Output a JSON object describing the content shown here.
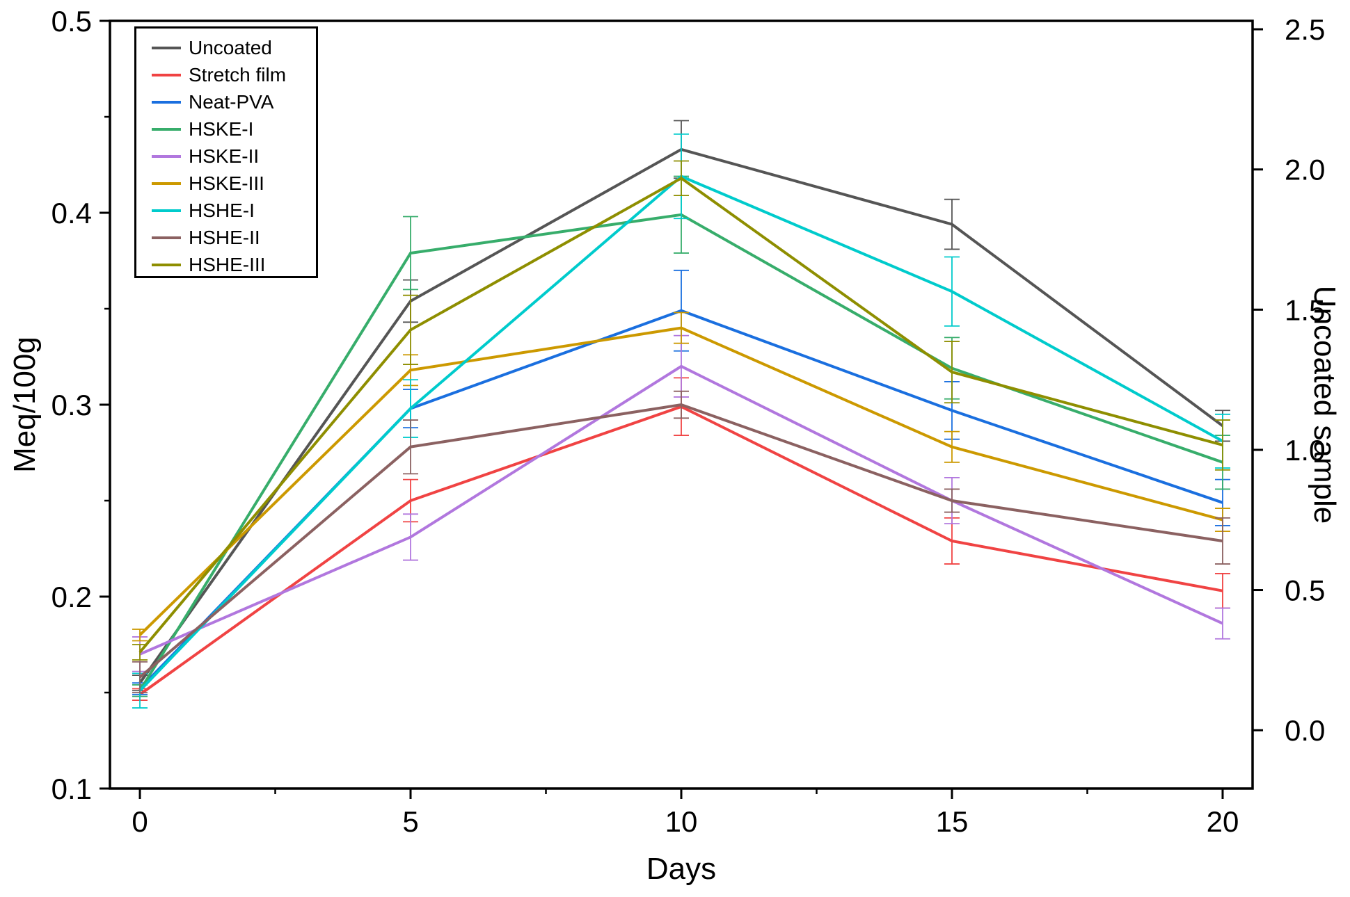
{
  "figure": {
    "background": "#ffffff",
    "x_axis": {
      "label": "Days",
      "ticks": [
        0,
        5,
        10,
        15,
        20
      ],
      "tick_labels": [
        "0",
        "5",
        "10",
        "15",
        "20"
      ],
      "minor_ticks": [
        2.5,
        7.5,
        12.5,
        17.5
      ],
      "range": [
        -0.553,
        20.553
      ]
    },
    "y_left": {
      "label": "Meq/100g",
      "ticks": [
        0.1,
        0.2,
        0.3,
        0.4,
        0.5
      ],
      "tick_labels": [
        "0.1",
        "0.2",
        "0.3",
        "0.4",
        "0.5"
      ],
      "minor_ticks": [
        0.15,
        0.25,
        0.35,
        0.45
      ],
      "range": [
        0.1,
        0.5
      ]
    },
    "y_right": {
      "label": "Uncoated sample",
      "ticks": [
        0.0,
        0.5,
        1.0,
        1.5,
        2.0,
        2.5
      ],
      "tick_labels": [
        "0.0",
        "0.5",
        "1.0",
        "1.5",
        "2.0",
        "2.5"
      ],
      "range": [
        -0.208,
        2.53
      ]
    },
    "frame_color": "#000000",
    "legend_position": "top-left"
  },
  "chart_data": {
    "type": "line",
    "title": "",
    "xlabel": "Days",
    "ylabel_left": "Meq/100g",
    "ylabel_right": "Uncoated sample",
    "x": [
      0,
      5,
      10,
      15,
      20
    ],
    "xlim": [
      -0.553,
      20.553
    ],
    "ylim_left": [
      0.1,
      0.5
    ],
    "ylim_right": [
      -0.208,
      2.53
    ],
    "grid": false,
    "error_bars": true,
    "legend_entries": [
      "Uncoated",
      "Stretch film",
      "Neat-PVA",
      "HSKE-I",
      "HSKE-II",
      "HSKE-III",
      "HSHE-I",
      "HSHE-II",
      "HSHE-III"
    ],
    "series": [
      {
        "name": "Uncoated",
        "color": "#555555",
        "values": [
          0.155,
          0.354,
          0.433,
          0.394,
          0.289
        ],
        "errors": [
          0.004,
          0.011,
          0.015,
          0.013,
          0.008
        ]
      },
      {
        "name": "Stretch film",
        "color": "#F04343",
        "values": [
          0.149,
          0.25,
          0.299,
          0.229,
          0.203
        ],
        "errors": [
          0.003,
          0.011,
          0.015,
          0.012,
          0.009
        ]
      },
      {
        "name": "Neat-PVA",
        "color": "#1A6FDF",
        "values": [
          0.152,
          0.298,
          0.349,
          0.297,
          0.249
        ],
        "errors": [
          0.003,
          0.01,
          0.021,
          0.015,
          0.012
        ]
      },
      {
        "name": "HSKE-I",
        "color": "#37AD6B",
        "values": [
          0.151,
          0.379,
          0.399,
          0.319,
          0.27
        ],
        "errors": [
          0.003,
          0.019,
          0.02,
          0.016,
          0.014
        ]
      },
      {
        "name": "HSKE-II",
        "color": "#B177DE",
        "values": [
          0.17,
          0.231,
          0.32,
          0.25,
          0.186
        ],
        "errors": [
          0.009,
          0.012,
          0.016,
          0.012,
          0.008
        ]
      },
      {
        "name": "HSKE-III",
        "color": "#CC9900",
        "values": [
          0.18,
          0.318,
          0.34,
          0.278,
          0.24
        ],
        "errors": [
          0.003,
          0.008,
          0.008,
          0.008,
          0.006
        ]
      },
      {
        "name": "HSHE-I",
        "color": "#00CBCC",
        "values": [
          0.151,
          0.298,
          0.419,
          0.359,
          0.281
        ],
        "errors": [
          0.009,
          0.015,
          0.022,
          0.018,
          0.014
        ]
      },
      {
        "name": "HSHE-II",
        "color": "#8B6161",
        "values": [
          0.158,
          0.278,
          0.3,
          0.25,
          0.229
        ],
        "errors": [
          0.008,
          0.014,
          0.007,
          0.006,
          0.012
        ]
      },
      {
        "name": "HSHE-III",
        "color": "#8E8E00",
        "values": [
          0.171,
          0.339,
          0.418,
          0.317,
          0.279
        ],
        "errors": [
          0.004,
          0.018,
          0.009,
          0.016,
          0.013
        ]
      }
    ]
  }
}
